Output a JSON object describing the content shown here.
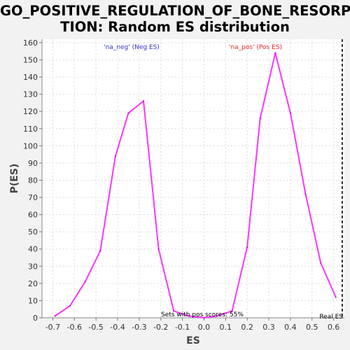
{
  "chart_data": {
    "type": "line",
    "title_line1": "GO_POSITIVE_REGULATION_OF_BONE_RESORP",
    "title_line2": "TION: Random ES distribution",
    "xlabel": "ES",
    "ylabel": "P(ES)",
    "xlim": [
      -0.75,
      0.65
    ],
    "ylim": [
      0,
      162
    ],
    "xticks": [
      "-0.7",
      "-0.6",
      "-0.5",
      "-0.4",
      "-0.3",
      "-0.2",
      "-0.1",
      "0.0",
      "0.1",
      "0.2",
      "0.3",
      "0.4",
      "0.5",
      "0.6"
    ],
    "yticks": [
      "0",
      "10",
      "20",
      "30",
      "40",
      "50",
      "60",
      "70",
      "80",
      "90",
      "100",
      "110",
      "120",
      "130",
      "140",
      "150",
      "160"
    ],
    "grid": true,
    "series": [
      {
        "color": "#ff33ff",
        "x": [
          -0.69,
          -0.62,
          -0.55,
          -0.48,
          -0.41,
          -0.35,
          -0.28,
          -0.21,
          -0.14,
          -0.07,
          0.0,
          0.06,
          0.13,
          0.2,
          0.26,
          0.33,
          0.4,
          0.47,
          0.54,
          0.61
        ],
        "y": [
          1,
          7,
          21,
          39,
          94,
          119,
          126,
          40,
          4,
          1,
          0,
          1,
          4,
          41,
          116,
          154,
          119,
          72,
          32,
          12
        ]
      }
    ],
    "annotations": {
      "neg_label": "'na_neg' (Neg ES)",
      "pos_label": "'na_pos' (Pos ES)",
      "pos_scores": "Sets with pos scores: 55%",
      "real_es_label": "Real ES",
      "neg_color": "#3333cc",
      "pos_color": "#ee2222"
    },
    "real_es": 0.64
  }
}
